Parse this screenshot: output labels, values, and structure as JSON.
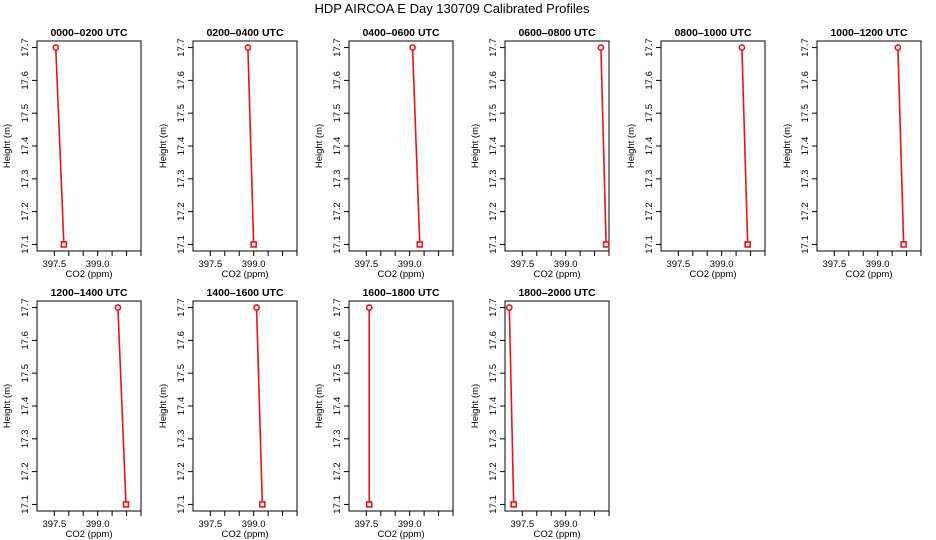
{
  "title": "HDP AIRCOA E  Day 130709  Calibrated Profiles",
  "chart_data": [
    {
      "type": "line",
      "title": "0000–0200 UTC",
      "xlabel": "CO2 (ppm)",
      "ylabel": "Height (m)",
      "xlim": [
        396.9,
        400.5
      ],
      "ylim": [
        17.08,
        17.72
      ],
      "x_ticks": [
        397.5,
        399.0
      ],
      "x_tick_labels": [
        "397.5",
        "399.0"
      ],
      "y_ticks": [
        17.1,
        17.2,
        17.3,
        17.4,
        17.5,
        17.6,
        17.7
      ],
      "y_tick_labels": [
        "17.1",
        "17.2",
        "17.3",
        "17.4",
        "17.5",
        "17.6",
        "17.7"
      ],
      "points": [
        {
          "x": 397.55,
          "y": 17.7
        },
        {
          "x": 397.83,
          "y": 17.1
        }
      ]
    },
    {
      "type": "line",
      "title": "0200–0400 UTC",
      "xlabel": "CO2 (ppm)",
      "ylabel": "Height (m)",
      "xlim": [
        396.9,
        400.5
      ],
      "ylim": [
        17.08,
        17.72
      ],
      "x_ticks": [
        397.5,
        399.0
      ],
      "x_tick_labels": [
        "397.5",
        "399.0"
      ],
      "y_ticks": [
        17.1,
        17.2,
        17.3,
        17.4,
        17.5,
        17.6,
        17.7
      ],
      "y_tick_labels": [
        "17.1",
        "17.2",
        "17.3",
        "17.4",
        "17.5",
        "17.6",
        "17.7"
      ],
      "points": [
        {
          "x": 398.8,
          "y": 17.7
        },
        {
          "x": 399.0,
          "y": 17.1
        }
      ]
    },
    {
      "type": "line",
      "title": "0400–0600 UTC",
      "xlabel": "CO2 (ppm)",
      "ylabel": "Height (m)",
      "xlim": [
        396.9,
        400.5
      ],
      "ylim": [
        17.08,
        17.72
      ],
      "x_ticks": [
        397.5,
        399.0
      ],
      "x_tick_labels": [
        "397.5",
        "399.0"
      ],
      "y_ticks": [
        17.1,
        17.2,
        17.3,
        17.4,
        17.5,
        17.6,
        17.7
      ],
      "y_tick_labels": [
        "17.1",
        "17.2",
        "17.3",
        "17.4",
        "17.5",
        "17.6",
        "17.7"
      ],
      "points": [
        {
          "x": 399.1,
          "y": 17.7
        },
        {
          "x": 399.35,
          "y": 17.1
        }
      ]
    },
    {
      "type": "line",
      "title": "0600–0800 UTC",
      "xlabel": "CO2 (ppm)",
      "ylabel": "Height (m)",
      "xlim": [
        396.9,
        400.5
      ],
      "ylim": [
        17.08,
        17.72
      ],
      "x_ticks": [
        397.5,
        399.0
      ],
      "x_tick_labels": [
        "397.5",
        "399.0"
      ],
      "y_ticks": [
        17.1,
        17.2,
        17.3,
        17.4,
        17.5,
        17.6,
        17.7
      ],
      "y_tick_labels": [
        "17.1",
        "17.2",
        "17.3",
        "17.4",
        "17.5",
        "17.6",
        "17.7"
      ],
      "points": [
        {
          "x": 400.22,
          "y": 17.7
        },
        {
          "x": 400.4,
          "y": 17.1
        }
      ]
    },
    {
      "type": "line",
      "title": "0800–1000 UTC",
      "xlabel": "CO2 (ppm)",
      "ylabel": "Height (m)",
      "xlim": [
        396.9,
        400.5
      ],
      "ylim": [
        17.08,
        17.72
      ],
      "x_ticks": [
        397.5,
        399.0
      ],
      "x_tick_labels": [
        "397.5",
        "399.0"
      ],
      "y_ticks": [
        17.1,
        17.2,
        17.3,
        17.4,
        17.5,
        17.6,
        17.7
      ],
      "y_tick_labels": [
        "17.1",
        "17.2",
        "17.3",
        "17.4",
        "17.5",
        "17.6",
        "17.7"
      ],
      "points": [
        {
          "x": 399.7,
          "y": 17.7
        },
        {
          "x": 399.9,
          "y": 17.1
        }
      ]
    },
    {
      "type": "line",
      "title": "1000–1200 UTC",
      "xlabel": "CO2 (ppm)",
      "ylabel": "Height (m)",
      "xlim": [
        396.9,
        400.5
      ],
      "ylim": [
        17.08,
        17.72
      ],
      "x_ticks": [
        397.5,
        399.0
      ],
      "x_tick_labels": [
        "397.5",
        "399.0"
      ],
      "y_ticks": [
        17.1,
        17.2,
        17.3,
        17.4,
        17.5,
        17.6,
        17.7
      ],
      "y_tick_labels": [
        "17.1",
        "17.2",
        "17.3",
        "17.4",
        "17.5",
        "17.6",
        "17.7"
      ],
      "points": [
        {
          "x": 399.7,
          "y": 17.7
        },
        {
          "x": 399.9,
          "y": 17.1
        }
      ]
    },
    {
      "type": "line",
      "title": "1200–1400 UTC",
      "xlabel": "CO2 (ppm)",
      "ylabel": "Height (m)",
      "xlim": [
        396.9,
        400.5
      ],
      "ylim": [
        17.08,
        17.72
      ],
      "x_ticks": [
        397.5,
        399.0
      ],
      "x_tick_labels": [
        "397.5",
        "399.0"
      ],
      "y_ticks": [
        17.1,
        17.2,
        17.3,
        17.4,
        17.5,
        17.6,
        17.7
      ],
      "y_tick_labels": [
        "17.1",
        "17.2",
        "17.3",
        "17.4",
        "17.5",
        "17.6",
        "17.7"
      ],
      "points": [
        {
          "x": 399.7,
          "y": 17.7
        },
        {
          "x": 399.98,
          "y": 17.1
        }
      ]
    },
    {
      "type": "line",
      "title": "1400–1600 UTC",
      "xlabel": "CO2 (ppm)",
      "ylabel": "Height (m)",
      "xlim": [
        396.9,
        400.5
      ],
      "ylim": [
        17.08,
        17.72
      ],
      "x_ticks": [
        397.5,
        399.0
      ],
      "x_tick_labels": [
        "397.5",
        "399.0"
      ],
      "y_ticks": [
        17.1,
        17.2,
        17.3,
        17.4,
        17.5,
        17.6,
        17.7
      ],
      "y_tick_labels": [
        "17.1",
        "17.2",
        "17.3",
        "17.4",
        "17.5",
        "17.6",
        "17.7"
      ],
      "points": [
        {
          "x": 399.1,
          "y": 17.7
        },
        {
          "x": 399.3,
          "y": 17.1
        }
      ]
    },
    {
      "type": "line",
      "title": "1600–1800 UTC",
      "xlabel": "CO2 (ppm)",
      "ylabel": "Height (m)",
      "xlim": [
        396.9,
        400.5
      ],
      "ylim": [
        17.08,
        17.72
      ],
      "x_ticks": [
        397.5,
        399.0
      ],
      "x_tick_labels": [
        "397.5",
        "399.0"
      ],
      "y_ticks": [
        17.1,
        17.2,
        17.3,
        17.4,
        17.5,
        17.6,
        17.7
      ],
      "y_tick_labels": [
        "17.1",
        "17.2",
        "17.3",
        "17.4",
        "17.5",
        "17.6",
        "17.7"
      ],
      "points": [
        {
          "x": 397.6,
          "y": 17.7
        },
        {
          "x": 397.6,
          "y": 17.1
        }
      ]
    },
    {
      "type": "line",
      "title": "1800–2000 UTC",
      "xlabel": "CO2 (ppm)",
      "ylabel": "Height (m)",
      "xlim": [
        396.9,
        400.5
      ],
      "ylim": [
        17.08,
        17.72
      ],
      "x_ticks": [
        397.5,
        399.0
      ],
      "x_tick_labels": [
        "397.5",
        "399.0"
      ],
      "y_ticks": [
        17.1,
        17.2,
        17.3,
        17.4,
        17.5,
        17.6,
        17.7
      ],
      "y_tick_labels": [
        "17.1",
        "17.2",
        "17.3",
        "17.4",
        "17.5",
        "17.6",
        "17.7"
      ],
      "points": [
        {
          "x": 397.05,
          "y": 17.7
        },
        {
          "x": 397.2,
          "y": 17.1
        }
      ]
    }
  ],
  "colors": {
    "profile": "#e8141b",
    "axes": "#000000",
    "background": "#ffffff"
  },
  "markers": {
    "top": "circle",
    "bottom": "square"
  }
}
